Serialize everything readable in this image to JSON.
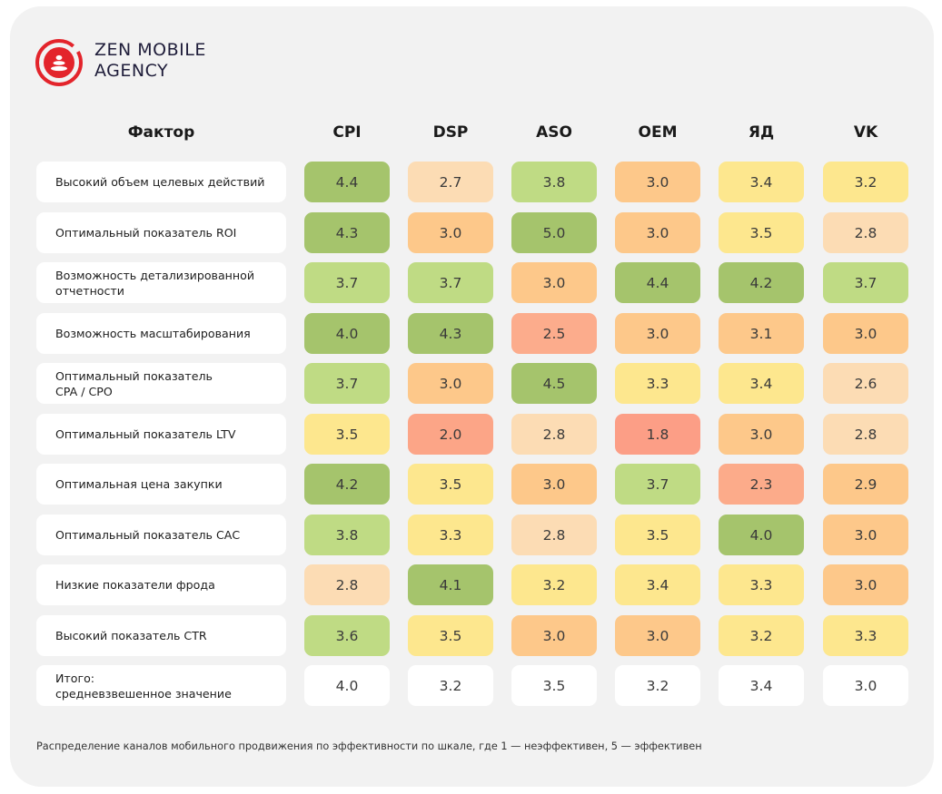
{
  "brand": {
    "line1": "ZEN MOBILE",
    "line2": "AGENCY"
  },
  "colors": {
    "background": "#f2f2f2",
    "cell_white": "#ffffff",
    "brand_red": "#e3242b",
    "scale": {
      "1.8": "#fc9e86",
      "2.0": "#fca587",
      "2.3": "#fcab8a",
      "2.5": "#fcac8c",
      "2.6-2.8": "#fcdcb4",
      "2.9-3.1": "#fdc88a",
      "3.2-3.5": "#fde78e",
      "3.6-3.8": "#bfdb84",
      "3.9-5.0": "#a5c46c"
    }
  },
  "chart_data": {
    "type": "table",
    "row_header_label": "Фактор",
    "columns": [
      "CPI",
      "DSP",
      "ASO",
      "OEM",
      "ЯД",
      "VK"
    ],
    "rows": [
      {
        "label": "Высокий объем целевых действий",
        "values": [
          "4.4",
          "2.7",
          "3.8",
          "3.0",
          "3.4",
          "3.2"
        ]
      },
      {
        "label": "Оптимальный показатель ROI",
        "values": [
          "4.3",
          "3.0",
          "5.0",
          "3.0",
          "3.5",
          "2.8"
        ]
      },
      {
        "label": "Возможность детализированной отчетности",
        "values": [
          "3.7",
          "3.7",
          "3.0",
          "4.4",
          "4.2",
          "3.7"
        ]
      },
      {
        "label": "Возможность масштабирования",
        "values": [
          "4.0",
          "4.3",
          "2.5",
          "3.0",
          "3.1",
          "3.0"
        ]
      },
      {
        "label": "Оптимальный показатель\nCPA / CPO",
        "values": [
          "3.7",
          "3.0",
          "4.5",
          "3.3",
          "3.4",
          "2.6"
        ]
      },
      {
        "label": "Оптимальный показатель LTV",
        "values": [
          "3.5",
          "2.0",
          "2.8",
          "1.8",
          "3.0",
          "2.8"
        ]
      },
      {
        "label": "Оптимальная цена закупки",
        "values": [
          "4.2",
          "3.5",
          "3.0",
          "3.7",
          "2.3",
          "2.9"
        ]
      },
      {
        "label": "Оптимальный показатель САС",
        "values": [
          "3.8",
          "3.3",
          "2.8",
          "3.5",
          "4.0",
          "3.0"
        ]
      },
      {
        "label": "Низкие показатели фрода",
        "values": [
          "2.8",
          "4.1",
          "3.2",
          "3.4",
          "3.3",
          "3.0"
        ]
      },
      {
        "label": "Высокий показатель CTR",
        "values": [
          "3.6",
          "3.5",
          "3.0",
          "3.0",
          "3.2",
          "3.3"
        ]
      }
    ],
    "total_row": {
      "label": "Итого:\nсредневзвешенное значение",
      "values": [
        "4.0",
        "3.2",
        "3.5",
        "3.2",
        "3.4",
        "3.0"
      ]
    },
    "scale_min": 1,
    "scale_max": 5
  },
  "caption": "Распределение каналов мобильного продвижения по эффективности по шкале, где 1 — неэффективен, 5 — эффективен"
}
